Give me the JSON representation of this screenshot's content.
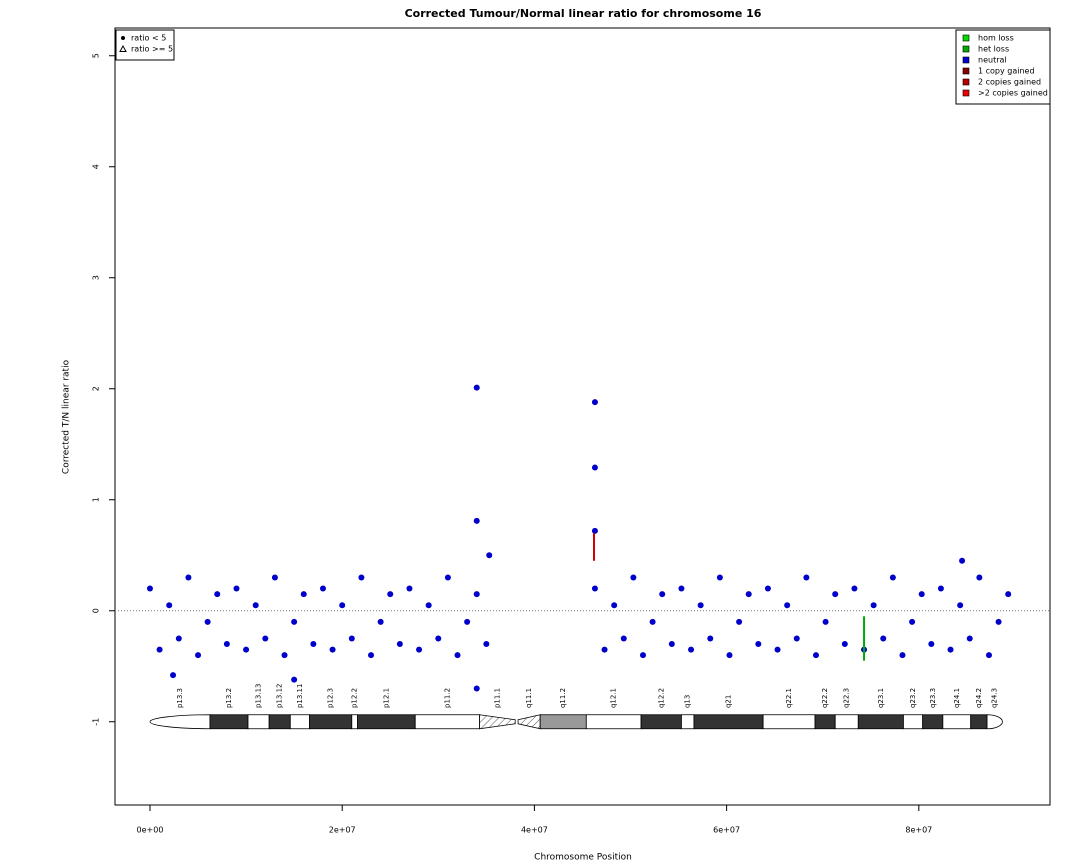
{
  "chart_data": {
    "type": "scatter",
    "title": "Corrected Tumour/Normal linear ratio for chromosome  16",
    "x_label": "Chromosome Position",
    "y_label": "Corrected T/N linear ratio",
    "xlim": [
      -3640000,
      93650000
    ],
    "ylim": [
      -1.75,
      5.25
    ],
    "xticks": [
      {
        "value": 0,
        "label": "0e+00"
      },
      {
        "value": 20000000,
        "label": "2e+07"
      },
      {
        "value": 40000000,
        "label": "4e+07"
      },
      {
        "value": 60000000,
        "label": "6e+07"
      },
      {
        "value": 80000000,
        "label": "8e+07"
      }
    ],
    "yticks": [
      -1,
      0,
      1,
      2,
      3,
      4,
      5
    ],
    "reference_line": 0,
    "points": {
      "color": "#0000cc",
      "x": [
        0,
        1000000,
        2000000,
        3000000,
        4000000,
        5000000,
        6000000,
        7000000,
        8000000,
        9000000,
        10000000,
        11000000,
        12000000,
        13000000,
        14000000,
        15000000,
        16000000,
        17000000,
        18000000,
        19000000,
        20000000,
        21000000,
        22000000,
        23000000,
        24000000,
        25000000,
        26000000,
        27000000,
        28000000,
        29000000,
        30000000,
        31000000,
        32000000,
        33000000,
        34000000,
        35000000,
        46300000,
        47300000,
        48300000,
        49300000,
        50300000,
        51300000,
        52300000,
        53300000,
        54300000,
        55300000,
        56300000,
        57300000,
        58300000,
        59300000,
        60300000,
        61300000,
        62300000,
        63300000,
        64300000,
        65300000,
        66300000,
        67300000,
        68300000,
        69300000,
        70300000,
        71300000,
        72300000,
        73300000,
        74300000,
        75300000,
        76300000,
        77300000,
        78300000,
        79300000,
        80300000,
        81300000,
        82300000,
        83300000,
        84300000,
        85300000,
        86300000,
        87300000,
        88300000,
        89300000,
        34000000,
        34000000,
        35300000,
        34000000,
        46300000,
        46300000,
        46300000,
        2400000,
        15000000,
        84500000
      ],
      "values": [
        0.2,
        -0.35,
        0.05,
        -0.25,
        0.3,
        -0.4,
        -0.1,
        0.15,
        -0.3,
        0.2,
        -0.35,
        0.05,
        -0.25,
        0.3,
        -0.4,
        -0.1,
        0.15,
        -0.3,
        0.2,
        -0.35,
        0.05,
        -0.25,
        0.3,
        -0.4,
        -0.1,
        0.15,
        -0.3,
        0.2,
        -0.35,
        0.05,
        -0.25,
        0.3,
        -0.4,
        -0.1,
        0.15,
        -0.3,
        0.2,
        -0.35,
        0.05,
        -0.25,
        0.3,
        -0.4,
        -0.1,
        0.15,
        -0.3,
        0.2,
        -0.35,
        0.05,
        -0.25,
        0.3,
        -0.4,
        -0.1,
        0.15,
        -0.3,
        0.2,
        -0.35,
        0.05,
        -0.25,
        0.3,
        -0.4,
        -0.1,
        0.15,
        -0.3,
        0.2,
        -0.35,
        0.05,
        -0.25,
        0.3,
        -0.4,
        -0.1,
        0.15,
        -0.3,
        0.2,
        -0.35,
        0.05,
        -0.25,
        0.3,
        -0.4,
        -0.1,
        0.15,
        2.01,
        0.81,
        0.5,
        -0.7,
        1.88,
        1.29,
        0.72,
        -0.58,
        -0.62,
        0.45
      ]
    },
    "cn_segments": [
      {
        "x": 46200000,
        "y0": 0.45,
        "y1": 0.7,
        "color": "#cc0000"
      },
      {
        "x": 74300000,
        "y0": -0.05,
        "y1": -0.45,
        "color": "#00aa00"
      }
    ],
    "ideogram": {
      "y": -1,
      "bands": [
        {
          "name": "p13.3",
          "start": 0,
          "end": 6240000,
          "stain": "end"
        },
        {
          "name": "p13.2",
          "start": 6240000,
          "end": 10200000,
          "stain": "dark"
        },
        {
          "name": "p13.13",
          "start": 10200000,
          "end": 12400000,
          "stain": "white"
        },
        {
          "name": "p13.12",
          "start": 12400000,
          "end": 14600000,
          "stain": "dark"
        },
        {
          "name": "p13.11",
          "start": 14600000,
          "end": 16600000,
          "stain": "white"
        },
        {
          "name": "p12.3",
          "start": 16600000,
          "end": 21000000,
          "stain": "dark"
        },
        {
          "name": "p12.2",
          "start": 21000000,
          "end": 21600000,
          "stain": "white"
        },
        {
          "name": "p12.1",
          "start": 21600000,
          "end": 27600000,
          "stain": "dark"
        },
        {
          "name": "p11.2",
          "start": 27600000,
          "end": 34300000,
          "stain": "white"
        },
        {
          "name": "p11.1",
          "start": 34300000,
          "end": 38000000,
          "stain": "hatch"
        },
        {
          "name": "q11.1",
          "start": 38300000,
          "end": 40600000,
          "stain": "hatch"
        },
        {
          "name": "q11.2",
          "start": 40600000,
          "end": 45400000,
          "stain": "gray"
        },
        {
          "name": "q12.1",
          "start": 45400000,
          "end": 51100000,
          "stain": "white"
        },
        {
          "name": "q12.2",
          "start": 51100000,
          "end": 55300000,
          "stain": "dark"
        },
        {
          "name": "q13",
          "start": 55300000,
          "end": 56600000,
          "stain": "white"
        },
        {
          "name": "q21",
          "start": 56600000,
          "end": 63800000,
          "stain": "dark"
        },
        {
          "name": "q22.1",
          "start": 63800000,
          "end": 69200000,
          "stain": "white"
        },
        {
          "name": "q22.2",
          "start": 69200000,
          "end": 71300000,
          "stain": "dark"
        },
        {
          "name": "q22.3",
          "start": 71300000,
          "end": 73700000,
          "stain": "white"
        },
        {
          "name": "q23.1",
          "start": 73700000,
          "end": 78400000,
          "stain": "dark"
        },
        {
          "name": "q23.2",
          "start": 78400000,
          "end": 80400000,
          "stain": "white"
        },
        {
          "name": "q23.3",
          "start": 80400000,
          "end": 82500000,
          "stain": "dark"
        },
        {
          "name": "q24.1",
          "start": 82500000,
          "end": 85400000,
          "stain": "white"
        },
        {
          "name": "q24.2",
          "start": 85400000,
          "end": 87100000,
          "stain": "dark"
        },
        {
          "name": "q24.3",
          "start": 87100000,
          "end": 88700000,
          "stain": "end"
        }
      ]
    },
    "shape_legend": {
      "position": "top-left",
      "items": [
        {
          "label": "ratio < 5",
          "shape": "circle"
        },
        {
          "label": "ratio >= 5",
          "shape": "triangle"
        }
      ]
    },
    "color_legend": {
      "position": "top-right",
      "items": [
        {
          "label": "hom loss",
          "color": "#00dd00"
        },
        {
          "label": "het loss",
          "color": "#00aa00"
        },
        {
          "label": "neutral",
          "color": "#0000cc"
        },
        {
          "label": "1 copy gained",
          "color": "#880000"
        },
        {
          "label": "2 copies gained",
          "color": "#bb0000"
        },
        {
          "label": ">2 copies gained",
          "color": "#ee0000"
        }
      ]
    }
  }
}
